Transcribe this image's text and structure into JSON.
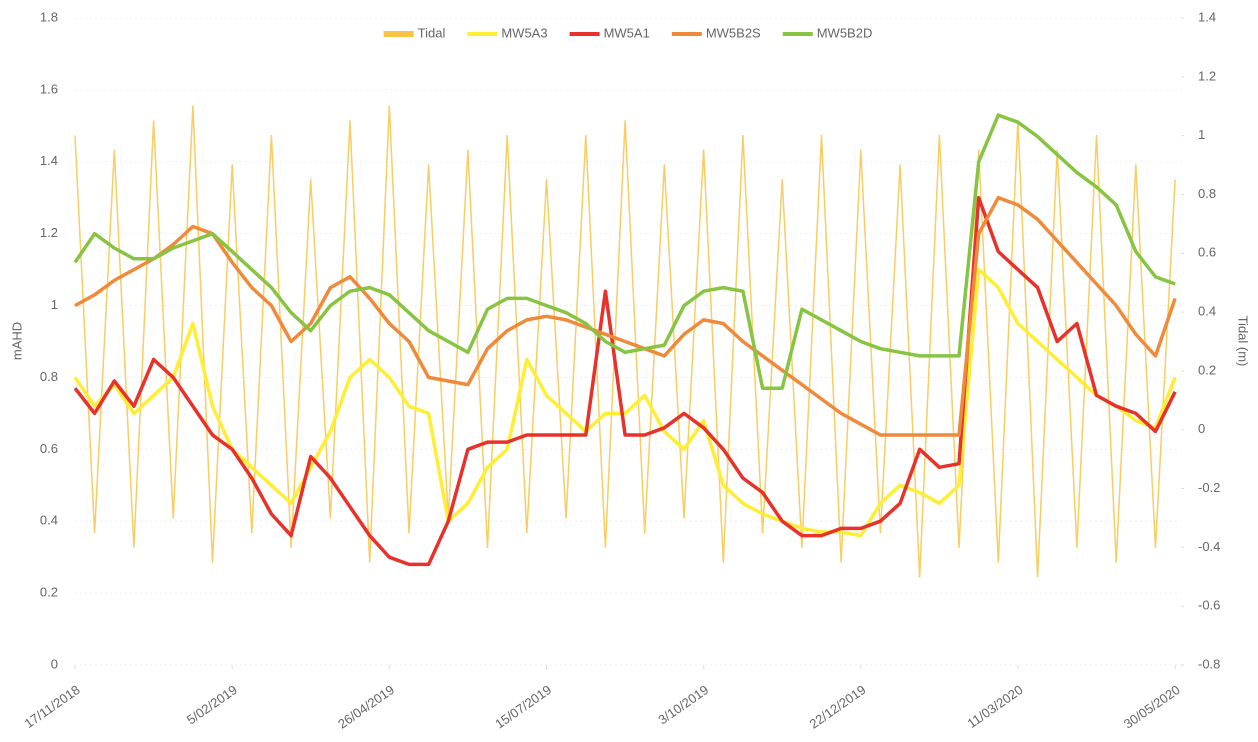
{
  "chart_data": {
    "type": "line",
    "y_label": "mAHD",
    "y2_label": "Tidal (m)",
    "x": [
      "17/11/2018",
      "27/11/2018",
      "7/12/2018",
      "17/12/2018",
      "27/12/2018",
      "6/01/2019",
      "16/01/2019",
      "26/01/2019",
      "5/02/2019",
      "15/02/2019",
      "25/02/2019",
      "7/03/2019",
      "17/03/2019",
      "27/03/2019",
      "6/04/2019",
      "16/04/2019",
      "26/04/2019",
      "6/05/2019",
      "16/05/2019",
      "26/05/2019",
      "5/06/2019",
      "15/06/2019",
      "25/06/2019",
      "5/07/2019",
      "15/07/2019",
      "25/07/2019",
      "4/08/2019",
      "14/08/2019",
      "24/08/2019",
      "3/09/2019",
      "13/09/2019",
      "23/09/2019",
      "3/10/2019",
      "13/10/2019",
      "23/10/2019",
      "2/11/2019",
      "12/11/2019",
      "22/11/2019",
      "2/12/2019",
      "12/12/2019",
      "22/12/2019",
      "1/01/2020",
      "11/01/2020",
      "21/01/2020",
      "31/01/2020",
      "10/02/2020",
      "20/02/2020",
      "1/03/2020",
      "11/03/2020",
      "21/03/2020",
      "31/03/2020",
      "10/04/2020",
      "20/04/2020",
      "30/04/2020",
      "10/05/2020",
      "20/05/2020",
      "30/05/2020"
    ],
    "xlim": [
      "17/11/2018",
      "2/06/2020"
    ],
    "xticks": [
      "17/11/2018",
      "5/02/2019",
      "26/04/2019",
      "15/07/2019",
      "3/10/2019",
      "22/12/2019",
      "11/03/2020",
      "30/05/2020"
    ],
    "ylim": [
      0,
      1.8
    ],
    "yticks": [
      0,
      0.2,
      0.4,
      0.6,
      0.8,
      1,
      1.2,
      1.4,
      1.6,
      1.8
    ],
    "y2lim": [
      -0.8,
      1.4
    ],
    "y2ticks": [
      -0.8,
      -0.6,
      -0.4,
      -0.2,
      0,
      0.2,
      0.4,
      0.6,
      0.8,
      1,
      1.2,
      1.4
    ],
    "grid": true,
    "legend": "top",
    "series": [
      {
        "name": "Tidal",
        "color": "#f7c445",
        "axis": "y2",
        "values": [
          1.0,
          -0.35,
          0.95,
          -0.4,
          1.05,
          -0.3,
          1.1,
          -0.45,
          0.9,
          -0.35,
          1.0,
          -0.4,
          0.85,
          -0.3,
          1.05,
          -0.45,
          1.1,
          -0.35,
          0.9,
          -0.3,
          0.95,
          -0.4,
          1.0,
          -0.35,
          0.85,
          -0.3,
          1.0,
          -0.4,
          1.05,
          -0.35,
          0.9,
          -0.3,
          0.95,
          -0.45,
          1.0,
          -0.35,
          0.85,
          -0.4,
          1.0,
          -0.45,
          0.95,
          -0.35,
          0.9,
          -0.5,
          1.0,
          -0.4,
          0.95,
          -0.45,
          1.05,
          -0.5,
          0.95,
          -0.4,
          1.0,
          -0.45,
          0.9,
          -0.4,
          0.85
        ]
      },
      {
        "name": "MW5A3",
        "color": "#ffee33",
        "values": [
          0.8,
          0.72,
          0.78,
          0.7,
          0.75,
          0.8,
          0.95,
          0.72,
          0.6,
          0.55,
          0.5,
          0.45,
          0.55,
          0.65,
          0.8,
          0.85,
          0.8,
          0.72,
          0.7,
          0.4,
          0.45,
          0.55,
          0.6,
          0.85,
          0.75,
          0.7,
          0.65,
          0.7,
          0.7,
          0.75,
          0.65,
          0.6,
          0.68,
          0.5,
          0.45,
          0.42,
          0.4,
          0.38,
          0.37,
          0.37,
          0.36,
          0.45,
          0.5,
          0.48,
          0.45,
          0.5,
          1.1,
          1.05,
          0.95,
          0.9,
          0.85,
          0.8,
          0.75,
          0.72,
          0.68,
          0.66,
          0.8
        ]
      },
      {
        "name": "MW5A1",
        "color": "#e8312a",
        "values": [
          0.77,
          0.7,
          0.79,
          0.72,
          0.85,
          0.8,
          0.72,
          0.64,
          0.6,
          0.52,
          0.42,
          0.36,
          0.58,
          0.52,
          0.44,
          0.36,
          0.3,
          0.28,
          0.28,
          0.4,
          0.6,
          0.62,
          0.62,
          0.64,
          0.64,
          0.64,
          0.64,
          1.04,
          0.64,
          0.64,
          0.66,
          0.7,
          0.66,
          0.6,
          0.52,
          0.48,
          0.4,
          0.36,
          0.36,
          0.38,
          0.38,
          0.4,
          0.45,
          0.6,
          0.55,
          0.56,
          1.3,
          1.15,
          1.1,
          1.05,
          0.9,
          0.95,
          0.75,
          0.72,
          0.7,
          0.65,
          0.76
        ]
      },
      {
        "name": "MW5B2S",
        "color": "#ef8a3a",
        "values": [
          1.0,
          1.03,
          1.07,
          1.1,
          1.13,
          1.17,
          1.22,
          1.2,
          1.12,
          1.05,
          1.0,
          0.9,
          0.95,
          1.05,
          1.08,
          1.02,
          0.95,
          0.9,
          0.8,
          0.79,
          0.78,
          0.88,
          0.93,
          0.96,
          0.97,
          0.96,
          0.94,
          0.92,
          0.9,
          0.88,
          0.86,
          0.92,
          0.96,
          0.95,
          0.9,
          0.86,
          0.82,
          0.78,
          0.74,
          0.7,
          0.67,
          0.64,
          0.64,
          0.64,
          0.64,
          0.64,
          1.2,
          1.3,
          1.28,
          1.24,
          1.18,
          1.12,
          1.06,
          1.0,
          0.92,
          0.86,
          1.02
        ]
      },
      {
        "name": "MW5B2D",
        "color": "#86c442",
        "values": [
          1.12,
          1.2,
          1.16,
          1.13,
          1.13,
          1.16,
          1.18,
          1.2,
          1.15,
          1.1,
          1.05,
          0.98,
          0.93,
          1.0,
          1.04,
          1.05,
          1.03,
          0.98,
          0.93,
          0.9,
          0.87,
          0.99,
          1.02,
          1.02,
          1.0,
          0.98,
          0.95,
          0.9,
          0.87,
          0.88,
          0.89,
          1.0,
          1.04,
          1.05,
          1.04,
          0.77,
          0.77,
          0.99,
          0.96,
          0.93,
          0.9,
          0.88,
          0.87,
          0.86,
          0.86,
          0.86,
          1.4,
          1.53,
          1.51,
          1.47,
          1.42,
          1.37,
          1.33,
          1.28,
          1.15,
          1.08,
          1.06
        ]
      }
    ]
  }
}
